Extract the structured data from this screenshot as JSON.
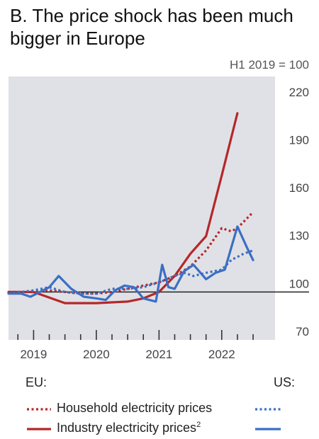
{
  "chart_data": {
    "type": "line",
    "title": "B. The price shock has been much bigger in Europe",
    "unit_label": "H1 2019 = 100",
    "y_ticks": [
      70,
      100,
      130,
      160,
      190,
      220
    ],
    "ylim": [
      70,
      235
    ],
    "xlim": [
      2018.6,
      2022.85
    ],
    "x_tick_labels": [
      {
        "label": "2019",
        "x": 2019.0
      },
      {
        "label": "2020",
        "x": 2020.0
      },
      {
        "label": "2021",
        "x": 2021.0
      },
      {
        "label": "2022",
        "x": 2022.0
      }
    ],
    "x_minor_ticks": [
      2018.75,
      2019.0,
      2019.25,
      2019.5,
      2019.75,
      2020.0,
      2020.25,
      2020.5,
      2020.75,
      2021.0,
      2021.25,
      2021.5,
      2021.75,
      2022.0,
      2022.25,
      2022.5
    ],
    "reference_line": 100,
    "grid": false,
    "legend_placement": "bottom",
    "series": [
      {
        "name": "Household electricity prices",
        "region": "EU",
        "style": "dotted",
        "color": "#b4282a",
        "points": [
          [
            2018.6,
            100
          ],
          [
            2018.8,
            100
          ],
          [
            2019.0,
            100
          ],
          [
            2019.25,
            101
          ],
          [
            2019.5,
            100
          ],
          [
            2019.75,
            99
          ],
          [
            2020.0,
            99
          ],
          [
            2020.25,
            100
          ],
          [
            2020.5,
            102
          ],
          [
            2020.75,
            104
          ],
          [
            2021.0,
            106
          ],
          [
            2021.25,
            110
          ],
          [
            2021.5,
            116
          ],
          [
            2021.75,
            126
          ],
          [
            2022.0,
            140
          ],
          [
            2022.15,
            138
          ],
          [
            2022.25,
            140
          ],
          [
            2022.5,
            150
          ]
        ]
      },
      {
        "name": "Industry electricity prices",
        "note": "2",
        "region": "EU",
        "style": "solid",
        "color": "#b4282a",
        "points": [
          [
            2018.6,
            100
          ],
          [
            2019.0,
            100
          ],
          [
            2019.5,
            93
          ],
          [
            2020.0,
            93
          ],
          [
            2020.5,
            94
          ],
          [
            2020.75,
            96
          ],
          [
            2021.0,
            100
          ],
          [
            2021.25,
            110
          ],
          [
            2021.5,
            124
          ],
          [
            2021.75,
            135
          ],
          [
            2022.0,
            173
          ],
          [
            2022.25,
            212
          ]
        ]
      },
      {
        "name": "Household electricity prices",
        "region": "US",
        "style": "dotted",
        "color": "#3a6fc4",
        "points": [
          [
            2018.6,
            99
          ],
          [
            2018.8,
            100
          ],
          [
            2019.0,
            101
          ],
          [
            2019.25,
            103
          ],
          [
            2019.5,
            100
          ],
          [
            2019.75,
            99
          ],
          [
            2020.0,
            99
          ],
          [
            2020.25,
            102
          ],
          [
            2020.5,
            102
          ],
          [
            2020.75,
            103
          ],
          [
            2021.0,
            106
          ],
          [
            2021.25,
            110
          ],
          [
            2021.4,
            112
          ],
          [
            2021.55,
            110
          ],
          [
            2021.75,
            112
          ],
          [
            2022.0,
            114
          ],
          [
            2022.15,
            120
          ],
          [
            2022.35,
            124
          ],
          [
            2022.5,
            126
          ]
        ]
      },
      {
        "name": "Industry electricity prices",
        "region": "US",
        "style": "solid",
        "color": "#3a6fc4",
        "points": [
          [
            2018.6,
            99
          ],
          [
            2018.8,
            99
          ],
          [
            2018.95,
            97
          ],
          [
            2019.1,
            100
          ],
          [
            2019.25,
            103
          ],
          [
            2019.4,
            110
          ],
          [
            2019.6,
            102
          ],
          [
            2019.8,
            97
          ],
          [
            2020.0,
            96
          ],
          [
            2020.15,
            95
          ],
          [
            2020.3,
            101
          ],
          [
            2020.45,
            104
          ],
          [
            2020.6,
            103
          ],
          [
            2020.75,
            96
          ],
          [
            2020.95,
            94
          ],
          [
            2021.05,
            117
          ],
          [
            2021.15,
            103
          ],
          [
            2021.25,
            102
          ],
          [
            2021.4,
            113
          ],
          [
            2021.55,
            117
          ],
          [
            2021.75,
            108
          ],
          [
            2021.9,
            112
          ],
          [
            2022.05,
            114
          ],
          [
            2022.25,
            141
          ],
          [
            2022.4,
            128
          ],
          [
            2022.5,
            120
          ]
        ]
      }
    ]
  },
  "legend": {
    "eu_heading": "EU:",
    "us_heading": "US:",
    "rows": [
      {
        "label": "Household electricity prices",
        "sup": "",
        "style": "dotted"
      },
      {
        "label": "Industry electricity prices",
        "sup": "2",
        "style": "solid"
      }
    ]
  }
}
